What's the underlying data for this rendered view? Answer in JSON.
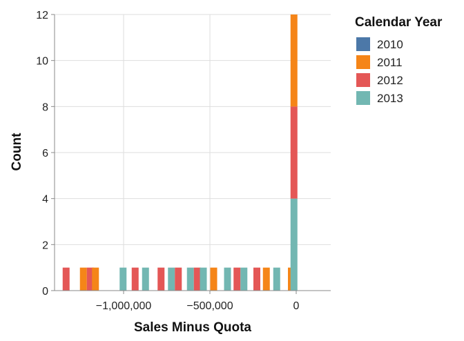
{
  "chart_data": {
    "type": "bar",
    "stacked": true,
    "xlabel": "Sales Minus Quota",
    "ylabel": "Count",
    "xlim": [
      -1400000,
      200000
    ],
    "ylim": [
      0,
      12
    ],
    "x_ticks": [
      -1000000,
      -500000,
      0
    ],
    "x_tick_labels": [
      "−1,000,000",
      "−500,000",
      "0"
    ],
    "y_ticks": [
      0,
      2,
      4,
      6,
      8,
      10,
      12
    ],
    "y_tick_labels": [
      "0",
      "2",
      "4",
      "6",
      "8",
      "10",
      "12"
    ],
    "grid": true,
    "legend": {
      "title": "Calendar Year",
      "placement": "right",
      "entries": [
        {
          "label": "2010",
          "color": "#4c78a8"
        },
        {
          "label": "2011",
          "color": "#f58518"
        },
        {
          "label": "2012",
          "color": "#e45756"
        },
        {
          "label": "2013",
          "color": "#72b7b2"
        }
      ]
    },
    "bar_width_units": 40000,
    "bars": [
      {
        "x": -1333000,
        "year": "2012",
        "y0": 0,
        "y1": 1
      },
      {
        "x": -1233000,
        "year": "2011",
        "y0": 0,
        "y1": 1
      },
      {
        "x": -1193000,
        "year": "2012",
        "y0": 0,
        "y1": 1
      },
      {
        "x": -1163000,
        "year": "2011",
        "y0": 0,
        "y1": 1
      },
      {
        "x": -1003000,
        "year": "2013",
        "y0": 0,
        "y1": 1
      },
      {
        "x": -933000,
        "year": "2012",
        "y0": 0,
        "y1": 1
      },
      {
        "x": -873000,
        "year": "2013",
        "y0": 0,
        "y1": 1
      },
      {
        "x": -783000,
        "year": "2012",
        "y0": 0,
        "y1": 1
      },
      {
        "x": -723000,
        "year": "2013",
        "y0": 0,
        "y1": 1
      },
      {
        "x": -683000,
        "year": "2012",
        "y0": 0,
        "y1": 1
      },
      {
        "x": -613000,
        "year": "2013",
        "y0": 0,
        "y1": 1
      },
      {
        "x": -573000,
        "year": "2012",
        "y0": 0,
        "y1": 1
      },
      {
        "x": -538000,
        "year": "2013",
        "y0": 0,
        "y1": 1
      },
      {
        "x": -478000,
        "year": "2011",
        "y0": 0,
        "y1": 1
      },
      {
        "x": -398000,
        "year": "2013",
        "y0": 0,
        "y1": 1
      },
      {
        "x": -343000,
        "year": "2012",
        "y0": 0,
        "y1": 1
      },
      {
        "x": -303000,
        "year": "2013",
        "y0": 0,
        "y1": 1
      },
      {
        "x": -228000,
        "year": "2012",
        "y0": 0,
        "y1": 1
      },
      {
        "x": -173000,
        "year": "2011",
        "y0": 0,
        "y1": 1
      },
      {
        "x": -113000,
        "year": "2013",
        "y0": 0,
        "y1": 1
      },
      {
        "x": -28000,
        "year": "2011",
        "y0": 0,
        "y1": 1
      },
      {
        "x": -13000,
        "year": "2013",
        "y0": 0,
        "y1": 4
      },
      {
        "x": -13000,
        "year": "2012",
        "y0": 4,
        "y1": 8
      },
      {
        "x": -13000,
        "year": "2011",
        "y0": 8,
        "y1": 12
      }
    ]
  }
}
